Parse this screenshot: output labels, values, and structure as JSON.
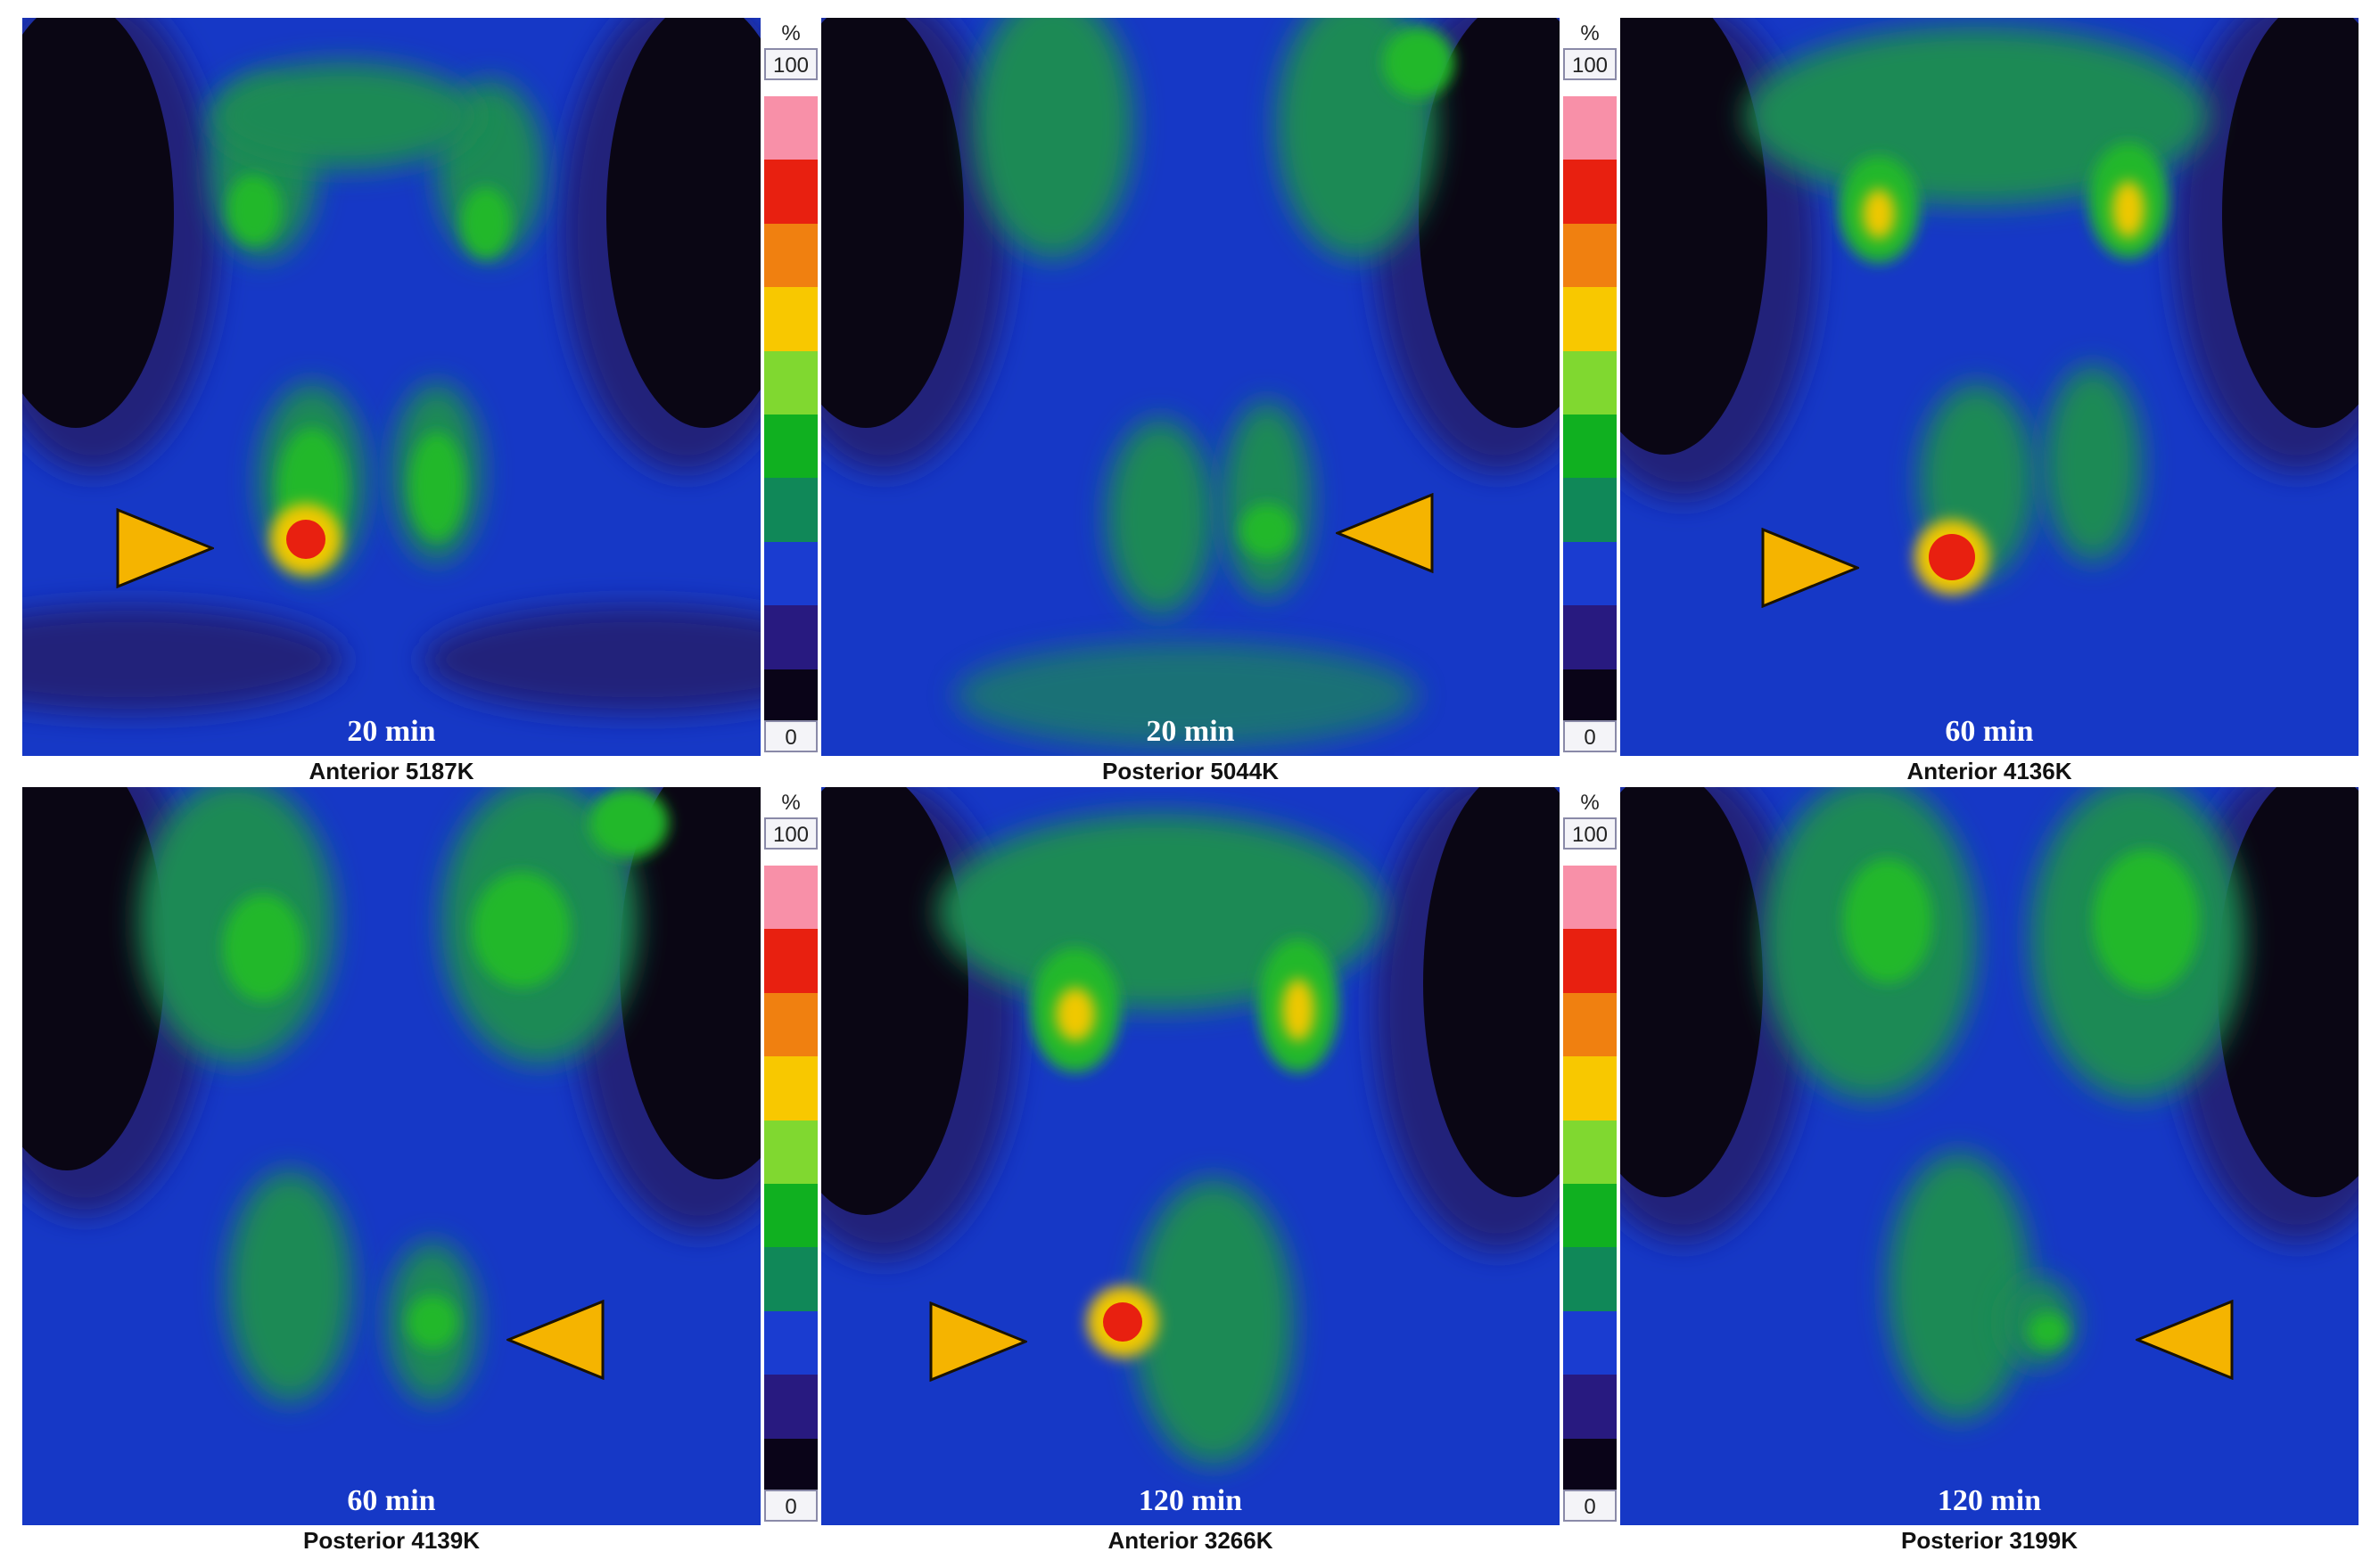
{
  "colors": {
    "background": "#0a0614",
    "halo_outer": "#24247a",
    "body_blue": "#1638c6",
    "uptake_lowgreen": "#1e8a54",
    "uptake_green": "#22b82a",
    "uptake_yellow": "#f0c800",
    "uptake_red": "#e82010",
    "arrowhead": "#f5b400"
  },
  "colorscale": {
    "unit": "%",
    "max": "100",
    "min": "0",
    "steps": [
      "#f890a8",
      "#e82010",
      "#f08010",
      "#f8c800",
      "#80d830",
      "#10b020",
      "#108858",
      "#1a3cd0",
      "#281a80",
      "#0a0418"
    ]
  },
  "panels": [
    {
      "time": "20 min",
      "caption": "Anterior 5187K"
    },
    {
      "time": "20 min",
      "caption": "Posterior 5044K"
    },
    {
      "time": "60 min",
      "caption": "Anterior 4136K"
    },
    {
      "time": "60 min",
      "caption": "Posterior 4139K"
    },
    {
      "time": "120 min",
      "caption": "Anterior 3266K"
    },
    {
      "time": "120 min",
      "caption": "Posterior 3199K"
    }
  ],
  "arrowheads": [
    {
      "panel": 1,
      "direction": "right"
    },
    {
      "panel": 2,
      "direction": "left"
    },
    {
      "panel": 3,
      "direction": "right"
    },
    {
      "panel": 4,
      "direction": "left"
    },
    {
      "panel": 5,
      "direction": "right"
    },
    {
      "panel": 6,
      "direction": "left"
    }
  ]
}
